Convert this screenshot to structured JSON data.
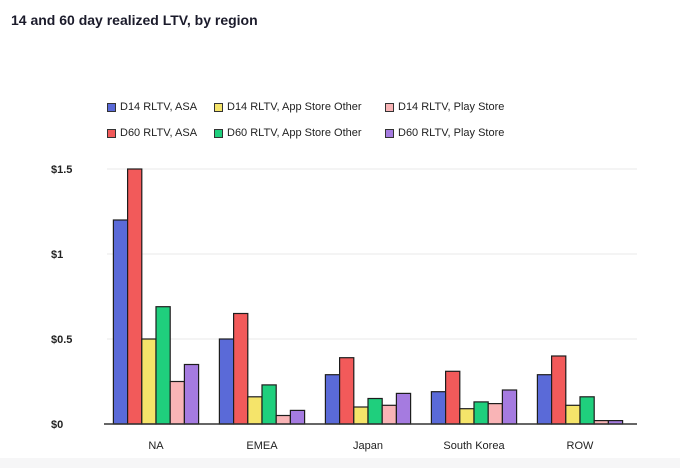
{
  "chart_data": {
    "type": "bar",
    "title": "14 and 60 day realized LTV, by region",
    "xlabel": "",
    "ylabel": "",
    "ylim": [
      0,
      1.5
    ],
    "yticks": [
      0,
      0.5,
      1,
      1.5
    ],
    "ytick_labels": [
      "$0",
      "$0.5",
      "$1",
      "$1.5"
    ],
    "grid": true,
    "legend_position": "top",
    "categories": [
      "NA",
      "EMEA",
      "Japan",
      "South Korea",
      "ROW"
    ],
    "series": [
      {
        "name": "D14 RLTV, ASA",
        "color": "#5a6ad8",
        "values": [
          1.2,
          0.5,
          0.29,
          0.19,
          0.29
        ]
      },
      {
        "name": "D60 RLTV, ASA",
        "color": "#f25a5a",
        "values": [
          1.5,
          0.65,
          0.39,
          0.31,
          0.4
        ]
      },
      {
        "name": "D14 RLTV, App Store Other",
        "color": "#f5e46a",
        "values": [
          0.5,
          0.16,
          0.1,
          0.09,
          0.11
        ]
      },
      {
        "name": "D60 RLTV, App Store Other",
        "color": "#1fcf7d",
        "values": [
          0.69,
          0.23,
          0.15,
          0.13,
          0.16
        ]
      },
      {
        "name": "D14 RLTV, Play Store",
        "color": "#f9b4b6",
        "values": [
          0.25,
          0.05,
          0.11,
          0.12,
          0.02
        ]
      },
      {
        "name": "D60 RLTV, Play Store",
        "color": "#a57be0",
        "values": [
          0.35,
          0.08,
          0.18,
          0.2,
          0.02
        ]
      }
    ],
    "legend_order": [
      0,
      2,
      4,
      1,
      3,
      5
    ]
  }
}
